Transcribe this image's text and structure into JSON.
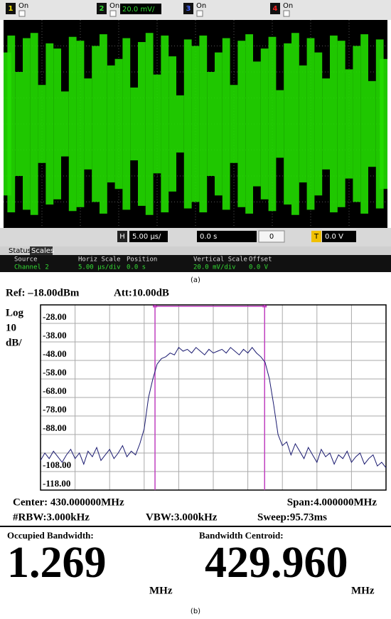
{
  "scope_ui": {
    "channels": [
      {
        "number": "1",
        "state": "On",
        "color": "#f0e000"
      },
      {
        "number": "2",
        "state": "On",
        "color": "#33dd33",
        "scale": "20.0 mV/"
      },
      {
        "number": "3",
        "state": "On",
        "color": "#4466ff"
      },
      {
        "number": "4",
        "state": "On",
        "color": "#ee2222"
      }
    ],
    "horizontal_label": "H",
    "timebase": "5.00 µs/",
    "delay": "0.0 s",
    "delay_ref": "0",
    "trigger_label": "T",
    "trigger_level": "0.0 V",
    "tabs": [
      "Status",
      "Scales"
    ],
    "table": {
      "headers": [
        "Source",
        "Horiz Scale",
        "Position",
        "Vertical Scale",
        "Offset"
      ],
      "row": [
        "Channel 2",
        "5.00 µs/div",
        "0.0 s",
        "20.0 mV/div",
        "0.0 V"
      ]
    },
    "caption": "(a)"
  },
  "chart_data": [
    {
      "type": "envelope",
      "color": "#22dd00",
      "x": [
        -25,
        -24,
        -23,
        -22,
        -21,
        -20,
        -19,
        -18,
        -17,
        -16,
        -15,
        -14,
        -13,
        -12,
        -11,
        -10,
        -9,
        -8,
        -7,
        -6,
        -5,
        -4,
        -3,
        -2,
        -1,
        0,
        1,
        2,
        3,
        4,
        5,
        6,
        7,
        8,
        9,
        10,
        11,
        12,
        13,
        14,
        15,
        16,
        17,
        18,
        19,
        20,
        21,
        22,
        23,
        24,
        25
      ],
      "values": [
        55,
        68,
        40,
        66,
        70,
        30,
        62,
        58,
        25,
        67,
        64,
        35,
        60,
        69,
        45,
        50,
        66,
        28,
        63,
        70,
        38,
        68,
        52,
        22,
        65,
        60,
        68,
        40,
        55,
        66,
        30,
        64,
        69,
        48,
        58,
        67,
        26,
        62,
        70,
        45,
        66,
        55,
        35,
        68,
        64,
        42,
        60,
        69,
        33,
        65,
        50
      ],
      "xlim": [
        -25,
        25
      ],
      "ylim": [
        -80,
        80
      ]
    },
    {
      "type": "line",
      "color": "#1a1a70",
      "ref": "Ref: –18.00dBm",
      "att": "Att:10.00dB",
      "y_label": [
        "Log",
        "10",
        "dB/"
      ],
      "x": [
        428.0,
        428.05,
        428.1,
        428.15,
        428.2,
        428.25,
        428.3,
        428.35,
        428.4,
        428.45,
        428.5,
        428.55,
        428.6,
        428.65,
        428.7,
        428.75,
        428.8,
        428.85,
        428.9,
        428.95,
        429.0,
        429.05,
        429.1,
        429.15,
        429.2,
        429.25,
        429.3,
        429.35,
        429.4,
        429.45,
        429.5,
        429.55,
        429.6,
        429.65,
        429.7,
        429.75,
        429.8,
        429.85,
        429.9,
        429.95,
        430.0,
        430.05,
        430.1,
        430.15,
        430.2,
        430.25,
        430.3,
        430.35,
        430.4,
        430.45,
        430.5,
        430.55,
        430.6,
        430.65,
        430.7,
        430.75,
        430.8,
        430.85,
        430.9,
        430.95,
        431.0,
        431.05,
        431.1,
        431.15,
        431.2,
        431.25,
        431.3,
        431.35,
        431.4,
        431.45,
        431.5,
        431.55,
        431.6,
        431.65,
        431.7,
        431.75,
        431.8,
        431.85,
        431.9,
        431.95,
        432.0
      ],
      "values": [
        -102,
        -98,
        -101,
        -97,
        -100,
        -103,
        -99,
        -96,
        -101,
        -98,
        -104,
        -97,
        -100,
        -95,
        -102,
        -99,
        -96,
        -101,
        -98,
        -94,
        -100,
        -97,
        -99,
        -93,
        -85,
        -68,
        -58,
        -50,
        -47,
        -46,
        -44,
        -45,
        -41,
        -43,
        -42,
        -44,
        -41,
        -43,
        -45,
        -42,
        -44,
        -43,
        -42,
        -44,
        -41,
        -43,
        -45,
        -42,
        -44,
        -41,
        -44,
        -46,
        -49,
        -58,
        -72,
        -88,
        -94,
        -92,
        -99,
        -93,
        -97,
        -101,
        -95,
        -99,
        -103,
        -96,
        -100,
        -98,
        -104,
        -99,
        -101,
        -97,
        -103,
        -100,
        -98,
        -104,
        -101,
        -99,
        -105,
        -103,
        -106
      ],
      "xlim": [
        428,
        432
      ],
      "ylim": [
        -118,
        -18
      ],
      "yticks": [
        {
          "value": -28,
          "label": "-28.00"
        },
        {
          "value": -38,
          "label": "-38.00"
        },
        {
          "value": -48,
          "label": "-48.00"
        },
        {
          "value": -58,
          "label": "-58.00"
        },
        {
          "value": -68,
          "label": "-68.00"
        },
        {
          "value": -78,
          "label": "-78.00"
        },
        {
          "value": -88,
          "label": "-88.00"
        },
        {
          "value": -108,
          "label": "-108.00"
        },
        {
          "value": -118,
          "label": "-118.00"
        }
      ],
      "marker_color": "#c040c0",
      "center": "Center: 430.000000MHz",
      "span": "Span:4.000000MHz",
      "rbw": "#RBW:3.000kHz",
      "vbw": "VBW:3.000kHz",
      "sweep": "Sweep:95.73ms",
      "occupied_bandwidth": {
        "label": "Occupied Bandwidth:",
        "value": 1.269,
        "unit": "MHz"
      },
      "centroid": {
        "label": "Bandwidth Centroid:",
        "value": 429.96,
        "value_label": "429.960",
        "unit": "MHz"
      },
      "caption": "(b)"
    }
  ]
}
